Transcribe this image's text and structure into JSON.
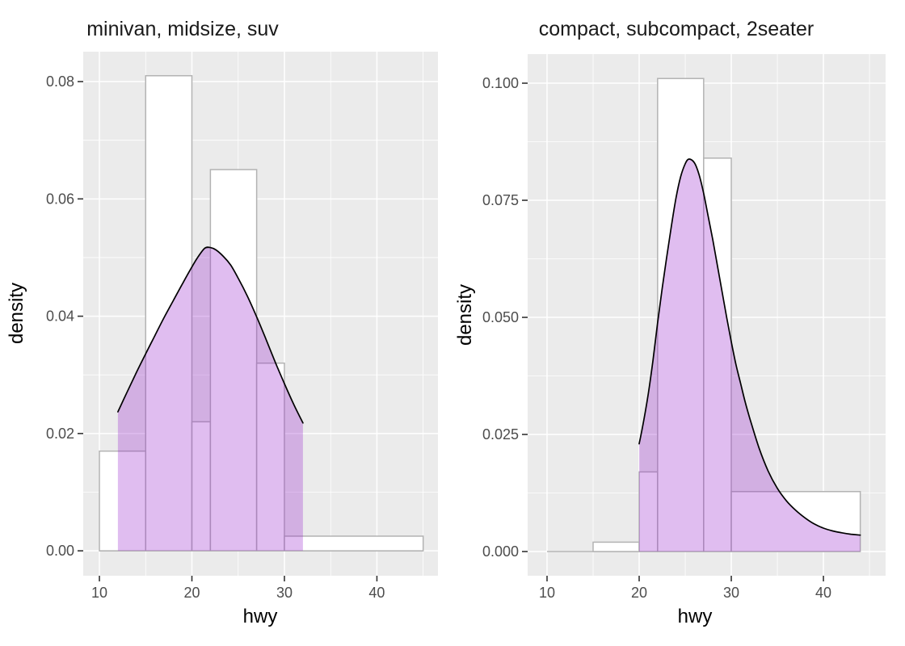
{
  "figure": {
    "background": "#ffffff"
  },
  "styles": {
    "panel_bg": "#EBEBEB",
    "grid_major_color": "#FFFFFF",
    "grid_minor_color": "#FFFFFF",
    "bar_fill": "#FFFFFF",
    "bar_stroke": "#B3B3B3",
    "density_fill": "rgba(152,35,205,0.30)",
    "density_stroke": "#000000",
    "tick_mark_color": "#333333",
    "tick_label_color": "#4D4D4D",
    "title_color": "#1A1A1A"
  },
  "chart_data": [
    {
      "type": "bar",
      "subtype": "histogram-with-density-overlay",
      "title": "minivan, midsize, suv",
      "xlabel": "hwy",
      "ylabel": "density",
      "xlim": [
        8.25,
        46.6
      ],
      "ylim": [
        -0.00425,
        0.0851
      ],
      "x_ticks": {
        "values": [
          10,
          20,
          30,
          40
        ],
        "labels": [
          "10",
          "20",
          "30",
          "40"
        ]
      },
      "x_minor": [
        15,
        25,
        35,
        45
      ],
      "y_ticks": {
        "values": [
          0.0,
          0.02,
          0.04,
          0.06,
          0.08
        ],
        "labels": [
          "0.00",
          "0.02",
          "0.04",
          "0.06",
          "0.08"
        ]
      },
      "y_minor": [
        0.01,
        0.03,
        0.05,
        0.07
      ],
      "grid": true,
      "legend": "none",
      "bins": [
        {
          "from": 10,
          "to": 15,
          "density": 0.017
        },
        {
          "from": 15,
          "to": 20,
          "density": 0.081
        },
        {
          "from": 20,
          "to": 22,
          "density": 0.022
        },
        {
          "from": 22,
          "to": 27,
          "density": 0.065
        },
        {
          "from": 27,
          "to": 30,
          "density": 0.032
        },
        {
          "from": 30,
          "to": 45,
          "density": 0.0025
        }
      ],
      "baseline_extent": [
        10,
        45
      ],
      "density_curve": [
        [
          12,
          0.0237
        ],
        [
          13,
          0.0271
        ],
        [
          14,
          0.0304
        ],
        [
          15,
          0.0336
        ],
        [
          16,
          0.0367
        ],
        [
          17,
          0.0398
        ],
        [
          18,
          0.0427
        ],
        [
          19,
          0.0456
        ],
        [
          20,
          0.0484
        ],
        [
          20.7,
          0.0502
        ],
        [
          21.4,
          0.0516
        ],
        [
          22,
          0.0517
        ],
        [
          22.6,
          0.0513
        ],
        [
          23.4,
          0.0502
        ],
        [
          24.2,
          0.0487
        ],
        [
          25,
          0.0465
        ],
        [
          26,
          0.0434
        ],
        [
          27,
          0.0399
        ],
        [
          28,
          0.0361
        ],
        [
          29,
          0.0322
        ],
        [
          30,
          0.0285
        ],
        [
          31,
          0.025
        ],
        [
          32,
          0.0218
        ]
      ]
    },
    {
      "type": "bar",
      "subtype": "histogram-with-density-overlay",
      "title": "compact, subcompact, 2seater",
      "xlabel": "hwy",
      "ylabel": "density",
      "xlim": [
        7.895,
        46.75
      ],
      "ylim": [
        -0.00517,
        0.10621
      ],
      "x_ticks": {
        "values": [
          10,
          20,
          30,
          40
        ],
        "labels": [
          "10",
          "20",
          "30",
          "40"
        ]
      },
      "x_minor": [
        15,
        25,
        35,
        45
      ],
      "y_ticks": {
        "values": [
          0.0,
          0.025,
          0.05,
          0.075,
          0.1
        ],
        "labels": [
          "0.000",
          "0.025",
          "0.050",
          "0.075",
          "0.100"
        ]
      },
      "y_minor": [
        0.0125,
        0.0375,
        0.0625,
        0.0875
      ],
      "grid": true,
      "legend": "none",
      "bins": [
        {
          "from": 15,
          "to": 20,
          "density": 0.002
        },
        {
          "from": 20,
          "to": 22,
          "density": 0.017
        },
        {
          "from": 22,
          "to": 27,
          "density": 0.101
        },
        {
          "from": 27,
          "to": 30,
          "density": 0.084
        },
        {
          "from": 30,
          "to": 44,
          "density": 0.0128
        }
      ],
      "baseline_extent": [
        10,
        44
      ],
      "density_curve": [
        [
          20,
          0.023
        ],
        [
          20.5,
          0.028
        ],
        [
          21,
          0.0338
        ],
        [
          21.5,
          0.0408
        ],
        [
          22,
          0.0488
        ],
        [
          22.5,
          0.0562
        ],
        [
          23,
          0.063
        ],
        [
          23.5,
          0.0695
        ],
        [
          24,
          0.0755
        ],
        [
          24.5,
          0.08
        ],
        [
          25,
          0.0828
        ],
        [
          25.4,
          0.0838
        ],
        [
          26,
          0.083
        ],
        [
          26.5,
          0.0805
        ],
        [
          27,
          0.0765
        ],
        [
          27.5,
          0.0715
        ],
        [
          28,
          0.0665
        ],
        [
          28.5,
          0.061
        ],
        [
          29,
          0.0555
        ],
        [
          29.5,
          0.05
        ],
        [
          30,
          0.0448
        ],
        [
          30.5,
          0.04
        ],
        [
          31,
          0.036
        ],
        [
          31.5,
          0.032
        ],
        [
          32,
          0.0285
        ],
        [
          33,
          0.0222
        ],
        [
          34,
          0.0172
        ],
        [
          35,
          0.0135
        ],
        [
          36,
          0.0108
        ],
        [
          37,
          0.0088
        ],
        [
          38,
          0.0072
        ],
        [
          39,
          0.0059
        ],
        [
          40,
          0.005
        ],
        [
          41,
          0.0044
        ],
        [
          42,
          0.004
        ],
        [
          43,
          0.0037
        ],
        [
          44,
          0.0035
        ]
      ]
    }
  ]
}
